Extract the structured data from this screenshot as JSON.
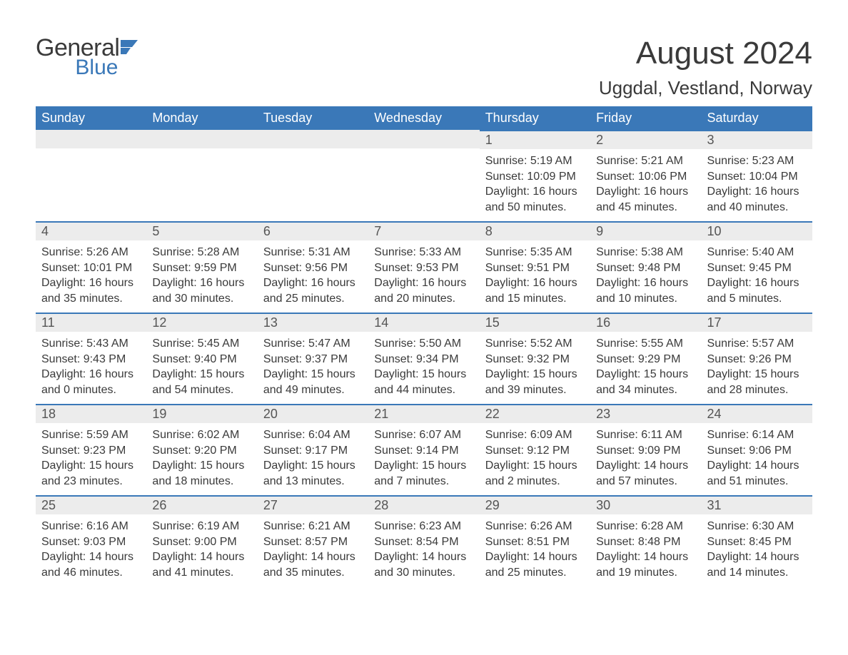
{
  "logo": {
    "general": "General",
    "blue": "Blue"
  },
  "title": "August 2024",
  "location": "Uggdal, Vestland, Norway",
  "colors": {
    "header_bg": "#3a78b8",
    "header_text": "#ffffff",
    "daynum_bg": "#ececec",
    "border_top": "#3a78b8",
    "body_text": "#3a3a3a",
    "background": "#ffffff"
  },
  "typography": {
    "title_fontsize": 44,
    "location_fontsize": 26,
    "dayheader_fontsize": 18,
    "body_fontsize": 16,
    "font_family": "Arial"
  },
  "calendar": {
    "type": "table",
    "days_of_week": [
      "Sunday",
      "Monday",
      "Tuesday",
      "Wednesday",
      "Thursday",
      "Friday",
      "Saturday"
    ],
    "first_weekday_index": 4,
    "days": [
      {
        "n": 1,
        "sunrise": "5:19 AM",
        "sunset": "10:09 PM",
        "daylight": "16 hours and 50 minutes."
      },
      {
        "n": 2,
        "sunrise": "5:21 AM",
        "sunset": "10:06 PM",
        "daylight": "16 hours and 45 minutes."
      },
      {
        "n": 3,
        "sunrise": "5:23 AM",
        "sunset": "10:04 PM",
        "daylight": "16 hours and 40 minutes."
      },
      {
        "n": 4,
        "sunrise": "5:26 AM",
        "sunset": "10:01 PM",
        "daylight": "16 hours and 35 minutes."
      },
      {
        "n": 5,
        "sunrise": "5:28 AM",
        "sunset": "9:59 PM",
        "daylight": "16 hours and 30 minutes."
      },
      {
        "n": 6,
        "sunrise": "5:31 AM",
        "sunset": "9:56 PM",
        "daylight": "16 hours and 25 minutes."
      },
      {
        "n": 7,
        "sunrise": "5:33 AM",
        "sunset": "9:53 PM",
        "daylight": "16 hours and 20 minutes."
      },
      {
        "n": 8,
        "sunrise": "5:35 AM",
        "sunset": "9:51 PM",
        "daylight": "16 hours and 15 minutes."
      },
      {
        "n": 9,
        "sunrise": "5:38 AM",
        "sunset": "9:48 PM",
        "daylight": "16 hours and 10 minutes."
      },
      {
        "n": 10,
        "sunrise": "5:40 AM",
        "sunset": "9:45 PM",
        "daylight": "16 hours and 5 minutes."
      },
      {
        "n": 11,
        "sunrise": "5:43 AM",
        "sunset": "9:43 PM",
        "daylight": "16 hours and 0 minutes."
      },
      {
        "n": 12,
        "sunrise": "5:45 AM",
        "sunset": "9:40 PM",
        "daylight": "15 hours and 54 minutes."
      },
      {
        "n": 13,
        "sunrise": "5:47 AM",
        "sunset": "9:37 PM",
        "daylight": "15 hours and 49 minutes."
      },
      {
        "n": 14,
        "sunrise": "5:50 AM",
        "sunset": "9:34 PM",
        "daylight": "15 hours and 44 minutes."
      },
      {
        "n": 15,
        "sunrise": "5:52 AM",
        "sunset": "9:32 PM",
        "daylight": "15 hours and 39 minutes."
      },
      {
        "n": 16,
        "sunrise": "5:55 AM",
        "sunset": "9:29 PM",
        "daylight": "15 hours and 34 minutes."
      },
      {
        "n": 17,
        "sunrise": "5:57 AM",
        "sunset": "9:26 PM",
        "daylight": "15 hours and 28 minutes."
      },
      {
        "n": 18,
        "sunrise": "5:59 AM",
        "sunset": "9:23 PM",
        "daylight": "15 hours and 23 minutes."
      },
      {
        "n": 19,
        "sunrise": "6:02 AM",
        "sunset": "9:20 PM",
        "daylight": "15 hours and 18 minutes."
      },
      {
        "n": 20,
        "sunrise": "6:04 AM",
        "sunset": "9:17 PM",
        "daylight": "15 hours and 13 minutes."
      },
      {
        "n": 21,
        "sunrise": "6:07 AM",
        "sunset": "9:14 PM",
        "daylight": "15 hours and 7 minutes."
      },
      {
        "n": 22,
        "sunrise": "6:09 AM",
        "sunset": "9:12 PM",
        "daylight": "15 hours and 2 minutes."
      },
      {
        "n": 23,
        "sunrise": "6:11 AM",
        "sunset": "9:09 PM",
        "daylight": "14 hours and 57 minutes."
      },
      {
        "n": 24,
        "sunrise": "6:14 AM",
        "sunset": "9:06 PM",
        "daylight": "14 hours and 51 minutes."
      },
      {
        "n": 25,
        "sunrise": "6:16 AM",
        "sunset": "9:03 PM",
        "daylight": "14 hours and 46 minutes."
      },
      {
        "n": 26,
        "sunrise": "6:19 AM",
        "sunset": "9:00 PM",
        "daylight": "14 hours and 41 minutes."
      },
      {
        "n": 27,
        "sunrise": "6:21 AM",
        "sunset": "8:57 PM",
        "daylight": "14 hours and 35 minutes."
      },
      {
        "n": 28,
        "sunrise": "6:23 AM",
        "sunset": "8:54 PM",
        "daylight": "14 hours and 30 minutes."
      },
      {
        "n": 29,
        "sunrise": "6:26 AM",
        "sunset": "8:51 PM",
        "daylight": "14 hours and 25 minutes."
      },
      {
        "n": 30,
        "sunrise": "6:28 AM",
        "sunset": "8:48 PM",
        "daylight": "14 hours and 19 minutes."
      },
      {
        "n": 31,
        "sunrise": "6:30 AM",
        "sunset": "8:45 PM",
        "daylight": "14 hours and 14 minutes."
      }
    ],
    "labels": {
      "sunrise": "Sunrise:",
      "sunset": "Sunset:",
      "daylight": "Daylight:"
    }
  }
}
